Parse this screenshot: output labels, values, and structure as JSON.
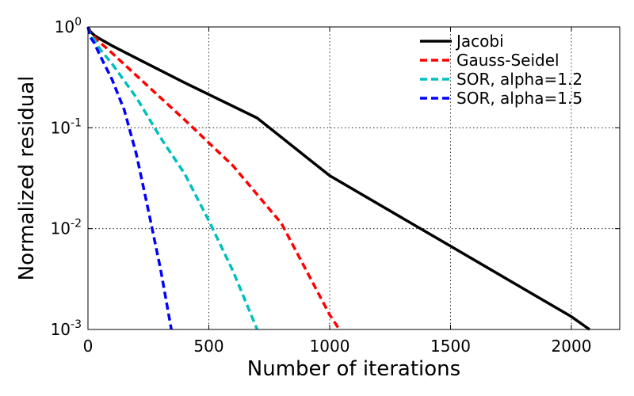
{
  "chart_data": {
    "type": "line",
    "xlabel": "Number of iterations",
    "ylabel": "Normalized residual",
    "xlim": [
      0,
      2200
    ],
    "ylim": [
      0.001,
      1
    ],
    "yscale": "log",
    "grid": true,
    "legend_position": "top-right",
    "x_ticks": [
      {
        "value": 0,
        "label": "0"
      },
      {
        "value": 500,
        "label": "500"
      },
      {
        "value": 1000,
        "label": "1000"
      },
      {
        "value": 1500,
        "label": "1500"
      },
      {
        "value": 2000,
        "label": "2000"
      }
    ],
    "y_ticks": [
      {
        "value": 1,
        "base": "10",
        "exp": "0"
      },
      {
        "value": 0.1,
        "base": "10",
        "exp": "-1"
      },
      {
        "value": 0.01,
        "base": "10",
        "exp": "-2"
      },
      {
        "value": 0.001,
        "base": "10",
        "exp": "-3"
      }
    ],
    "series": [
      {
        "name": "Jacobi",
        "color": "#000000",
        "dash": "solid",
        "x": [
          0,
          10,
          25,
          50,
          100,
          200,
          400,
          700,
          1000,
          1500,
          2000,
          2075
        ],
        "y": [
          1.0,
          0.9,
          0.83,
          0.76,
          0.65,
          0.49,
          0.28,
          0.125,
          0.0335,
          0.0067,
          0.00134,
          0.001
        ]
      },
      {
        "name": "Gauss-Seidel",
        "color": "#ff0000",
        "dash": "dashed",
        "x": [
          0,
          10,
          25,
          50,
          100,
          200,
          400,
          600,
          800,
          1000,
          1040
        ],
        "y": [
          1.0,
          0.86,
          0.8,
          0.7,
          0.55,
          0.33,
          0.12,
          0.042,
          0.0113,
          0.0014,
          0.001
        ]
      },
      {
        "name": "SOR, alpha=1.2",
        "color": "#00bfbf",
        "dash": "dashed",
        "x": [
          0,
          10,
          25,
          50,
          100,
          200,
          300,
          400,
          500,
          600,
          700
        ],
        "y": [
          1.0,
          0.84,
          0.76,
          0.6,
          0.43,
          0.2,
          0.08,
          0.035,
          0.012,
          0.0038,
          0.001
        ]
      },
      {
        "name": "SOR, alpha=1.5",
        "color": "#0000ff",
        "dash": "dashed",
        "x": [
          0,
          10,
          25,
          50,
          100,
          150,
          200,
          250,
          300,
          345
        ],
        "y": [
          1.0,
          0.79,
          0.7,
          0.52,
          0.3,
          0.15,
          0.055,
          0.015,
          0.004,
          0.001
        ]
      }
    ]
  }
}
